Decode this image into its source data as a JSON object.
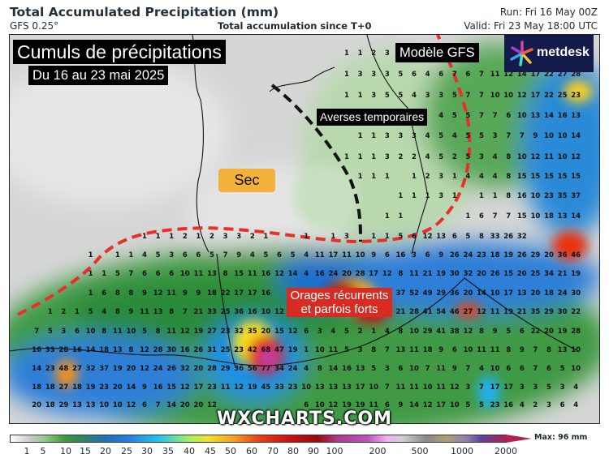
{
  "header": {
    "title": "Total Accumulated Precipitation (mm)",
    "model": "GFS 0.25°",
    "subtitle": "Total accumulation since T+0",
    "run": "Run: Fri 16 May 00Z",
    "valid": "Valid: Fri 23 May 18:00 UTC"
  },
  "annotations": {
    "title": "Cumuls de précipitations",
    "dates": "Du 16 au 23 mai 2025",
    "model": "Modèle GFS",
    "averses": "Averses temporaires",
    "sec": "Sec",
    "orages_line1": "Orages récurrents",
    "orages_line2": "et parfois forts",
    "sec_color": "#f3b13c",
    "orages_color": "#d92b22"
  },
  "logo": {
    "text": "metdesk"
  },
  "watermark": "WXCHARTS.COM",
  "grid_values": [
    {
      "start": 25,
      "values": [
        1,
        1,
        2,
        3
      ]
    },
    {
      "start": 25,
      "values": [
        1,
        3,
        3,
        3,
        5,
        6,
        4,
        6,
        7,
        6,
        7,
        11,
        12,
        14,
        17,
        22,
        27,
        28
      ]
    },
    {
      "start": 25,
      "values": [
        1,
        1,
        3,
        5,
        5,
        4,
        3,
        3,
        5,
        7,
        7,
        10,
        10,
        12,
        17,
        22,
        25,
        23
      ]
    },
    {
      "start": 32,
      "values": [
        4,
        5,
        5,
        7,
        7,
        6,
        10,
        13,
        14,
        16,
        13
      ]
    },
    {
      "start": 26,
      "values": [
        1,
        1,
        3,
        3,
        3,
        4,
        5,
        4,
        5,
        5,
        3,
        7,
        7,
        9,
        10,
        10,
        14
      ]
    },
    {
      "start": 25,
      "values": [
        1,
        1,
        1,
        3,
        2,
        2,
        4,
        5,
        2,
        5,
        3,
        4,
        8,
        10,
        12,
        11,
        10,
        12
      ]
    },
    {
      "start": 26,
      "values": [
        1,
        1,
        1,
        null,
        1,
        2,
        3,
        1,
        4,
        4,
        4,
        8,
        15,
        15,
        15,
        15,
        15
      ]
    },
    {
      "start": 29,
      "values": [
        1,
        1,
        1,
        3,
        1,
        null,
        1,
        1,
        8,
        16,
        10,
        23,
        35,
        37
      ]
    },
    {
      "start": 28,
      "values": [
        1,
        1,
        null,
        null,
        null,
        null,
        1,
        6,
        7,
        7,
        15,
        10,
        18,
        13,
        14
      ]
    },
    {
      "start": 10,
      "values": [
        1,
        1,
        1,
        2,
        1,
        2,
        3,
        3,
        2,
        1,
        null,
        null,
        1,
        null,
        1,
        3,
        null,
        1,
        1,
        5,
        6,
        12,
        13,
        6,
        5,
        8,
        33,
        26,
        32
      ]
    },
    {
      "start": 6,
      "values": [
        1,
        null,
        1,
        1,
        4,
        5,
        3,
        6,
        6,
        5,
        7,
        9,
        4,
        5,
        6,
        5,
        4,
        11,
        17,
        11,
        10,
        9,
        6,
        16,
        3,
        6,
        9,
        26,
        24,
        23,
        18,
        19,
        26,
        29,
        20,
        36,
        46
      ]
    },
    {
      "start": 6,
      "values": [
        1,
        1,
        5,
        7,
        6,
        6,
        6,
        10,
        11,
        13,
        8,
        15,
        11,
        16,
        12,
        14,
        4,
        16,
        24,
        20,
        28,
        17,
        12,
        8,
        11,
        21,
        19,
        30,
        32,
        20,
        26,
        15,
        20,
        25,
        34,
        21,
        19
      ]
    },
    {
      "start": 6,
      "values": [
        1,
        6,
        8,
        8,
        9,
        12,
        11,
        9,
        9,
        18,
        22,
        17,
        17,
        16,
        null,
        null,
        null,
        null,
        null,
        null,
        null,
        null,
        null,
        37,
        52,
        49,
        29,
        36,
        20,
        14,
        10,
        17,
        13,
        20,
        18,
        24,
        30
      ]
    },
    {
      "start": 3,
      "values": [
        1,
        2,
        1,
        5,
        4,
        8,
        9,
        11,
        13,
        8,
        7,
        21,
        33,
        25,
        36,
        16,
        10,
        12,
        null,
        null,
        null,
        null,
        null,
        null,
        null,
        null,
        21,
        28,
        41,
        54,
        46,
        27,
        12,
        11,
        19,
        21,
        35,
        29,
        30,
        22
      ]
    },
    {
      "start": 2,
      "values": [
        7,
        5,
        3,
        6,
        10,
        8,
        11,
        10,
        5,
        8,
        11,
        12,
        19,
        27,
        23,
        32,
        35,
        20,
        15,
        12,
        6,
        3,
        4,
        5,
        2,
        1,
        4,
        8,
        10,
        29,
        41,
        38,
        12,
        8,
        9,
        5,
        6,
        22,
        20,
        19,
        28
      ]
    },
    {
      "start": 2,
      "values": [
        16,
        33,
        28,
        16,
        14,
        18,
        13,
        8,
        12,
        28,
        30,
        16,
        26,
        31,
        25,
        23,
        42,
        68,
        47,
        19,
        1,
        10,
        11,
        5,
        3,
        8,
        7,
        13,
        11,
        18,
        9,
        6,
        10,
        11,
        11,
        8,
        9,
        7,
        8,
        13,
        10
      ]
    },
    {
      "start": 2,
      "values": [
        14,
        23,
        48,
        27,
        32,
        37,
        19,
        20,
        12,
        24,
        26,
        32,
        20,
        28,
        29,
        36,
        56,
        77,
        34,
        24,
        4,
        8,
        14,
        16,
        13,
        5,
        3,
        6,
        10,
        7,
        11,
        9,
        7,
        4,
        10,
        6,
        6,
        7,
        6,
        5,
        10
      ]
    },
    {
      "start": 2,
      "values": [
        18,
        18,
        27,
        18,
        19,
        23,
        20,
        14,
        9,
        16,
        15,
        12,
        17,
        23,
        11,
        12,
        19,
        45,
        33,
        23,
        10,
        13,
        13,
        13,
        17,
        10,
        7,
        11,
        11,
        10,
        11,
        12,
        3,
        7,
        17,
        17,
        3,
        3,
        5,
        3,
        4
      ]
    },
    {
      "start": 2,
      "values": [
        20,
        18,
        29,
        13,
        13,
        10,
        10,
        12,
        6,
        7,
        14,
        20,
        20,
        12,
        null,
        null,
        null,
        null,
        null,
        null,
        6,
        10,
        12,
        19,
        19,
        11,
        6,
        9,
        14,
        12,
        17,
        10,
        5,
        5,
        23,
        16,
        4,
        2,
        3,
        6,
        4
      ]
    }
  ],
  "colorbar": {
    "ticks": [
      "1",
      "5",
      "10",
      "15",
      "20",
      "25",
      "30",
      "35",
      "40",
      "45",
      "50",
      "60",
      "70",
      "80",
      "90",
      "100",
      "200",
      "500",
      "1000",
      "2000"
    ],
    "max_label": "Max: 96 mm",
    "units": "mm"
  }
}
